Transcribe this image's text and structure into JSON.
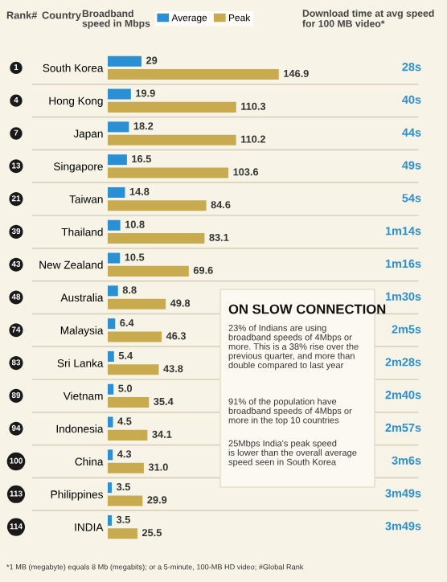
{
  "chart_data": {
    "type": "bar",
    "orientation": "horizontal",
    "xlabel": "Broadband\nspeed in Mbps",
    "categories": [
      "South Korea",
      "Hong Kong",
      "Japan",
      "Singapore",
      "Taiwan",
      "Thailand",
      "New Zealand",
      "Australia",
      "Malaysia",
      "Sri Lanka",
      "Vietnam",
      "Indonesia",
      "China",
      "Philippines",
      "INDIA"
    ],
    "series": [
      {
        "name": "Average",
        "color": "#2b8fd3",
        "values": [
          29,
          19.9,
          18.2,
          16.5,
          14.8,
          10.8,
          10.5,
          8.8,
          6.4,
          5.4,
          5,
          4.5,
          4.3,
          3.5,
          3.5
        ],
        "value_labels": [
          "29",
          "19.9",
          "18.2",
          "16.5",
          "14.8",
          "10.8",
          "10.5",
          "8.8",
          "6.4",
          "5.4",
          "5.0",
          "4.5",
          "4.3",
          "3.5",
          "3.5"
        ]
      },
      {
        "name": "Peak",
        "color": "#c9ab4f",
        "values": [
          146.9,
          110.3,
          110.2,
          103.6,
          84.6,
          83.1,
          69.6,
          49.8,
          46.3,
          43.8,
          35.4,
          34.1,
          31,
          29.9,
          25.5
        ],
        "value_labels": [
          "146.9",
          "110.3",
          "110.2",
          "103.6",
          "84.6",
          "83.1",
          "69.6",
          "49.8",
          "46.3",
          "43.8",
          "35.4",
          "34.1",
          "31.0",
          "29.9",
          "25.5"
        ]
      }
    ],
    "legend": "top",
    "grid": false,
    "annotations": [
      "Rank#",
      "Country",
      "Download time at avg speed\nfor 100 MB video*",
      "ON SLOW CONNECTION",
      "23% of Indians are using\nbroadband speeds of 4Mbps or\nmore. This is a 38% rise over the\nprevious quarter, and more than\ndouble compared to last year",
      "91% of the population have\nbroadband speeds of 4Mbps or\nmore in the top 10 countries",
      "25Mbps India's peak speed\nis lower than the overall average\nspeed seen in South Korea",
      "*1 MB (megabyte) equals 8 Mb (megabits); or a 5-minute, 100-MB HD video; #Global Rank",
      "1",
      "4",
      "7",
      "13",
      "21",
      "39",
      "43",
      "48",
      "74",
      "83",
      "89",
      "94",
      "100",
      "113",
      "114",
      "28s",
      "40s",
      "44s",
      "49s",
      "54s",
      "1m14s",
      "1m16s",
      "1m30s",
      "2m5s",
      "2m28s",
      "2m40s",
      "2m57s",
      "3m6s",
      "3m49s",
      "3m49s"
    ]
  }
}
